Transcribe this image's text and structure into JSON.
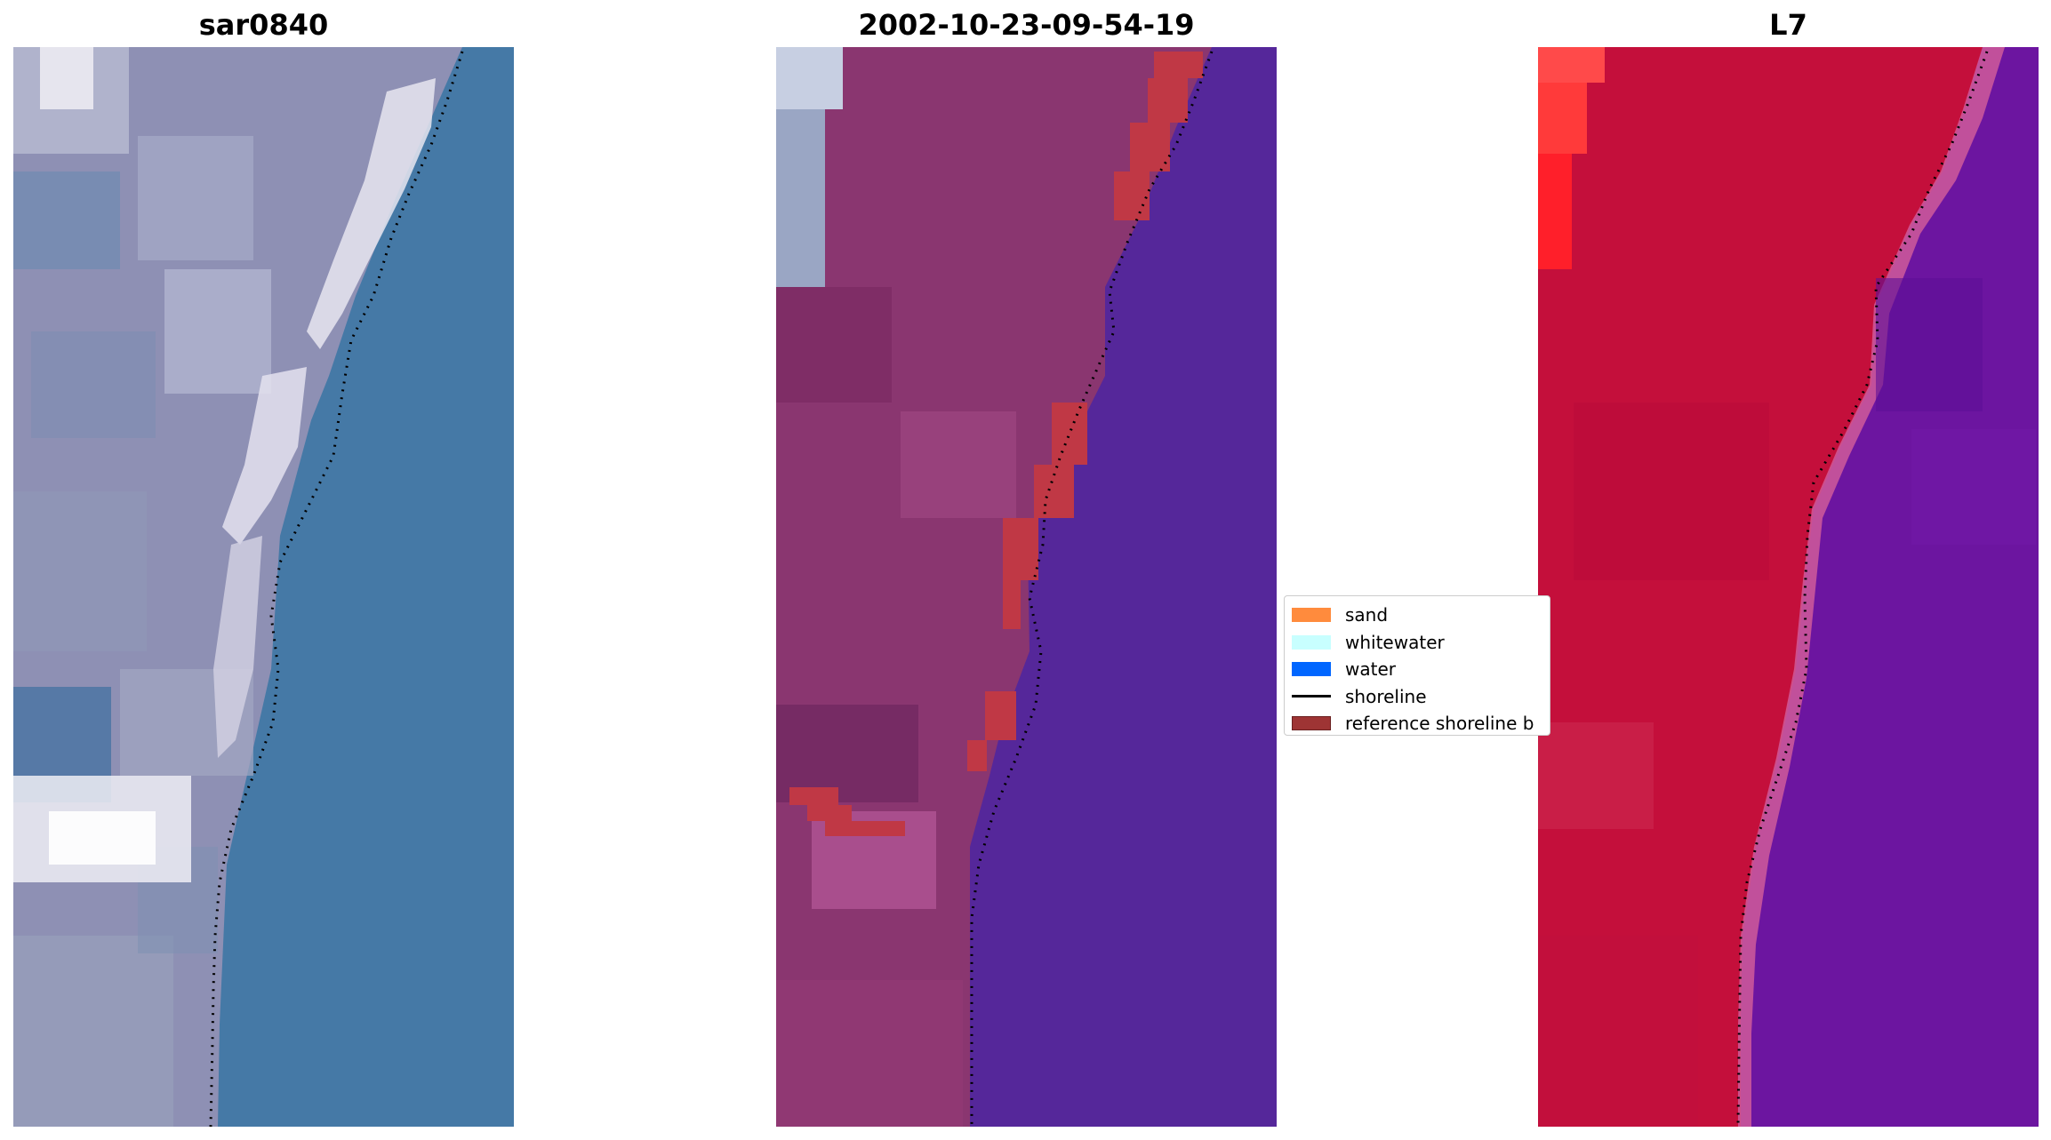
{
  "panels": [
    {
      "title": "sar0840"
    },
    {
      "title": "2002-10-23-09-54-19"
    },
    {
      "title": "L7"
    }
  ],
  "legend": {
    "items": [
      {
        "label": "sand",
        "color": "#ff8b3d",
        "kind": "patch"
      },
      {
        "label": "whitewater",
        "color": "#c8ffff",
        "kind": "patch"
      },
      {
        "label": "water",
        "color": "#0066ff",
        "kind": "patch"
      },
      {
        "label": "shoreline",
        "color": "#000000",
        "kind": "line"
      },
      {
        "label": "reference shoreline b",
        "color": "#9e3434",
        "kind": "patch"
      }
    ]
  },
  "colors": {
    "rgb_land": "#8e90b4",
    "rgb_ocean": "#4579a6",
    "rgb_foam": "#e8e6f0",
    "classified_land": "#8a3670",
    "classified_water": "#55279a",
    "classified_buffer": "#c03845",
    "ir_land": "#c40f3b",
    "ir_water": "#6c15a0",
    "ir_bright": "#ff2e2e"
  }
}
